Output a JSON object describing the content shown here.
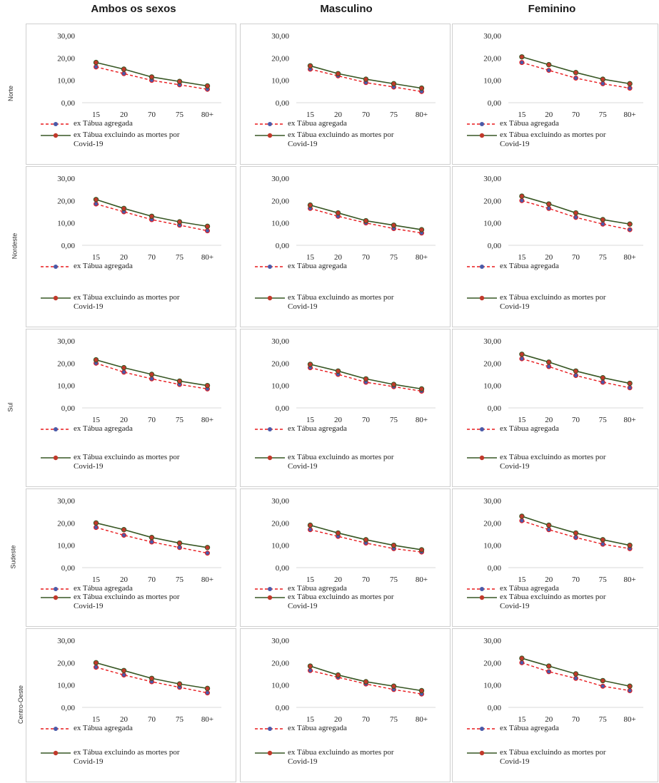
{
  "columns": [
    "Ambos os sexos",
    "Masculino",
    "Feminino"
  ],
  "rows": [
    "Norte",
    "Nordeste",
    "Sul",
    "Sudeste",
    "Centro-Oeste"
  ],
  "legend": {
    "series1": "ex Tábua agregada",
    "series2_line1": "ex Tábua excluindo as mortes por",
    "series2_line2": "Covid-19"
  },
  "colors": {
    "agregada": "#e8191c",
    "excluindo": "#375623",
    "marker1": "#4a5aa8",
    "marker2": "#c0392b"
  },
  "chart_data": {
    "type": "line",
    "categories": [
      "15",
      "20",
      "70",
      "75",
      "80+"
    ],
    "yticks": [
      "0,00",
      "10,00",
      "20,00",
      "30,00"
    ],
    "ylim": [
      0,
      30
    ],
    "series_names": [
      "ex Tábua agregada",
      "ex Tábua excluindo as mortes por Covid-19"
    ],
    "panels": [
      {
        "row": "Norte",
        "col": "Ambos os sexos",
        "agregada": [
          16,
          13,
          10,
          8,
          6
        ],
        "excluindo": [
          18,
          15,
          11.5,
          9.5,
          7.5
        ]
      },
      {
        "row": "Norte",
        "col": "Masculino",
        "agregada": [
          15,
          12,
          9,
          7,
          5
        ],
        "excluindo": [
          16.5,
          13,
          10.5,
          8.5,
          6.5
        ]
      },
      {
        "row": "Norte",
        "col": "Feminino",
        "agregada": [
          18,
          14.5,
          11,
          8.5,
          6.5
        ],
        "excluindo": [
          20.5,
          17,
          13.5,
          10.5,
          8.5
        ]
      },
      {
        "row": "Nordeste",
        "col": "Ambos os sexos",
        "agregada": [
          18.5,
          15,
          11.5,
          9,
          6.5
        ],
        "excluindo": [
          20.5,
          16.5,
          13,
          10.5,
          8.5
        ]
      },
      {
        "row": "Nordeste",
        "col": "Masculino",
        "agregada": [
          16.5,
          13,
          10,
          7.5,
          5.5
        ],
        "excluindo": [
          18,
          14.5,
          11,
          9,
          7
        ]
      },
      {
        "row": "Nordeste",
        "col": "Feminino",
        "agregada": [
          20,
          16.5,
          12.5,
          9.5,
          7
        ],
        "excluindo": [
          22,
          18.5,
          14.5,
          11.5,
          9.5
        ]
      },
      {
        "row": "Sul",
        "col": "Ambos os sexos",
        "agregada": [
          20,
          16,
          13,
          10.5,
          8.5
        ],
        "excluindo": [
          21.5,
          18,
          15,
          12,
          10
        ]
      },
      {
        "row": "Sul",
        "col": "Masculino",
        "agregada": [
          18,
          15,
          11.5,
          9.5,
          7.5
        ],
        "excluindo": [
          19.5,
          16.5,
          13,
          10.5,
          8.5
        ]
      },
      {
        "row": "Sul",
        "col": "Feminino",
        "agregada": [
          22,
          18.5,
          14.5,
          11.5,
          9
        ],
        "excluindo": [
          24,
          20.5,
          16.5,
          13.5,
          11
        ]
      },
      {
        "row": "Sudeste",
        "col": "Ambos os sexos",
        "agregada": [
          18,
          14.5,
          11.5,
          9,
          6.5
        ],
        "excluindo": [
          20,
          17,
          13.5,
          11,
          9
        ]
      },
      {
        "row": "Sudeste",
        "col": "Masculino",
        "agregada": [
          17,
          14,
          11,
          8.5,
          7
        ],
        "excluindo": [
          19,
          15.5,
          12.5,
          10,
          8
        ]
      },
      {
        "row": "Sudeste",
        "col": "Feminino",
        "agregada": [
          21,
          17,
          13.5,
          10.5,
          8.5
        ],
        "excluindo": [
          23,
          19,
          15.5,
          12.5,
          10
        ]
      },
      {
        "row": "Centro-Oeste",
        "col": "Ambos os sexos",
        "agregada": [
          18,
          14.5,
          11.5,
          9,
          6.5
        ],
        "excluindo": [
          20,
          16.5,
          13,
          10.5,
          8.5
        ]
      },
      {
        "row": "Centro-Oeste",
        "col": "Masculino",
        "agregada": [
          16.5,
          13.5,
          10.5,
          8,
          6
        ],
        "excluindo": [
          18.5,
          14.5,
          11.5,
          9.5,
          7.5
        ]
      },
      {
        "row": "Centro-Oeste",
        "col": "Feminino",
        "agregada": [
          20,
          16,
          13,
          9.5,
          7.5
        ],
        "excluindo": [
          22,
          18.5,
          15,
          12,
          9.5
        ]
      }
    ]
  }
}
